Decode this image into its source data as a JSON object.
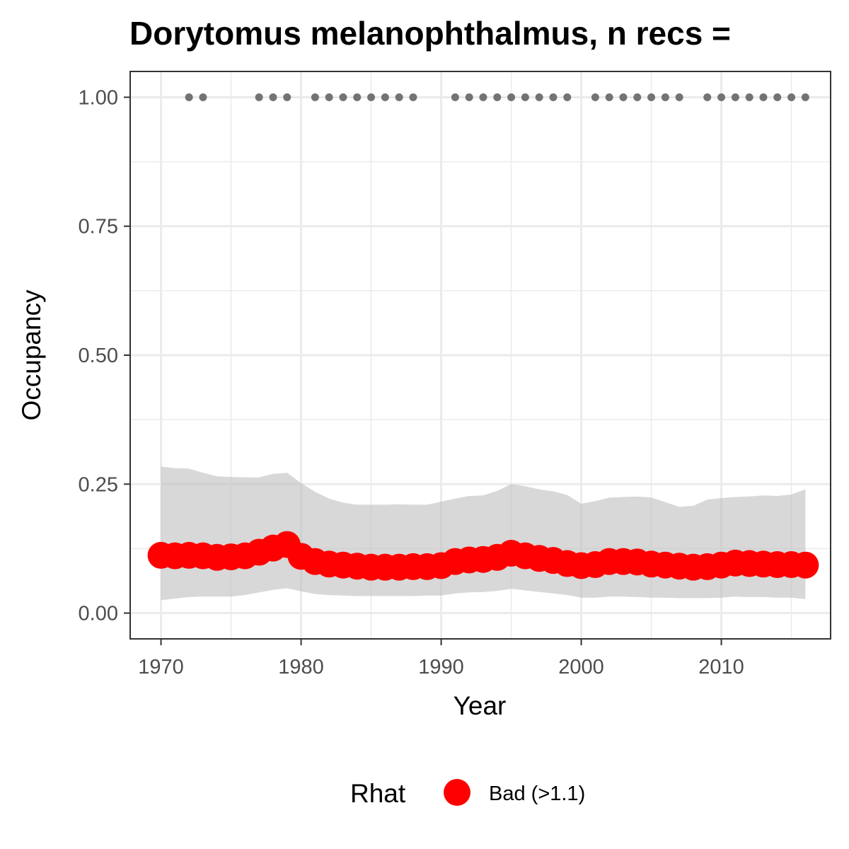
{
  "chart_data": {
    "type": "line",
    "title": "Dorytomus melanophthalmus, n recs =",
    "xlabel": "Year",
    "ylabel": "Occupancy",
    "xlim": [
      1967.8,
      2017.8
    ],
    "ylim": [
      -0.05,
      1.05
    ],
    "x_ticks": [
      1970,
      1980,
      1990,
      2000,
      2010
    ],
    "x_tick_labels": [
      "1970",
      "1980",
      "1990",
      "2000",
      "2010"
    ],
    "y_ticks": [
      0,
      0.25,
      0.5,
      0.75,
      1
    ],
    "y_tick_labels": [
      "0.00",
      "0.25",
      "0.50",
      "0.75",
      "1.00"
    ],
    "grid": true,
    "years": [
      1970,
      1971,
      1972,
      1973,
      1974,
      1975,
      1976,
      1977,
      1978,
      1979,
      1980,
      1981,
      1982,
      1983,
      1984,
      1985,
      1986,
      1987,
      1988,
      1989,
      1990,
      1991,
      1992,
      1993,
      1994,
      1995,
      1996,
      1997,
      1998,
      1999,
      2000,
      2001,
      2002,
      2003,
      2004,
      2005,
      2006,
      2007,
      2008,
      2009,
      2010,
      2011,
      2012,
      2013,
      2014,
      2015,
      2016
    ],
    "occupancy_mean": [
      0.112,
      0.111,
      0.112,
      0.111,
      0.108,
      0.109,
      0.111,
      0.118,
      0.126,
      0.133,
      0.11,
      0.1,
      0.095,
      0.093,
      0.091,
      0.089,
      0.089,
      0.089,
      0.09,
      0.09,
      0.092,
      0.1,
      0.103,
      0.104,
      0.108,
      0.116,
      0.111,
      0.106,
      0.102,
      0.096,
      0.092,
      0.094,
      0.1,
      0.1,
      0.099,
      0.095,
      0.093,
      0.091,
      0.089,
      0.09,
      0.093,
      0.097,
      0.096,
      0.095,
      0.094,
      0.094,
      0.093
    ],
    "ci_lower": [
      0.025,
      0.028,
      0.031,
      0.032,
      0.032,
      0.032,
      0.035,
      0.04,
      0.045,
      0.048,
      0.042,
      0.037,
      0.035,
      0.034,
      0.033,
      0.033,
      0.033,
      0.033,
      0.033,
      0.034,
      0.034,
      0.038,
      0.04,
      0.041,
      0.043,
      0.047,
      0.044,
      0.041,
      0.038,
      0.035,
      0.03,
      0.03,
      0.032,
      0.032,
      0.031,
      0.03,
      0.03,
      0.029,
      0.029,
      0.029,
      0.03,
      0.032,
      0.031,
      0.031,
      0.03,
      0.03,
      0.027
    ],
    "ci_upper": [
      0.284,
      0.281,
      0.28,
      0.272,
      0.265,
      0.264,
      0.263,
      0.263,
      0.27,
      0.272,
      0.252,
      0.235,
      0.222,
      0.214,
      0.21,
      0.21,
      0.21,
      0.211,
      0.21,
      0.21,
      0.216,
      0.222,
      0.227,
      0.228,
      0.237,
      0.25,
      0.246,
      0.24,
      0.236,
      0.229,
      0.212,
      0.217,
      0.224,
      0.225,
      0.226,
      0.224,
      0.215,
      0.206,
      0.208,
      0.22,
      0.223,
      0.225,
      0.226,
      0.228,
      0.227,
      0.23,
      0.24
    ],
    "record_years": [
      1972,
      1973,
      1977,
      1978,
      1979,
      1981,
      1982,
      1983,
      1984,
      1985,
      1986,
      1987,
      1988,
      1991,
      1992,
      1993,
      1994,
      1995,
      1996,
      1997,
      1998,
      1999,
      2001,
      2002,
      2003,
      2004,
      2005,
      2006,
      2007,
      2009,
      2010,
      2011,
      2012,
      2013,
      2014,
      2015,
      2016
    ],
    "record_value": 1.0,
    "legend": {
      "title": "Rhat",
      "label": "Bad (>1.1)",
      "placement": "bottom"
    },
    "colors": {
      "point": "#ff0000",
      "ribbon": "#bebebe",
      "record": "#737373",
      "grid": "#ebebeb",
      "panel_border": "#333333"
    }
  }
}
